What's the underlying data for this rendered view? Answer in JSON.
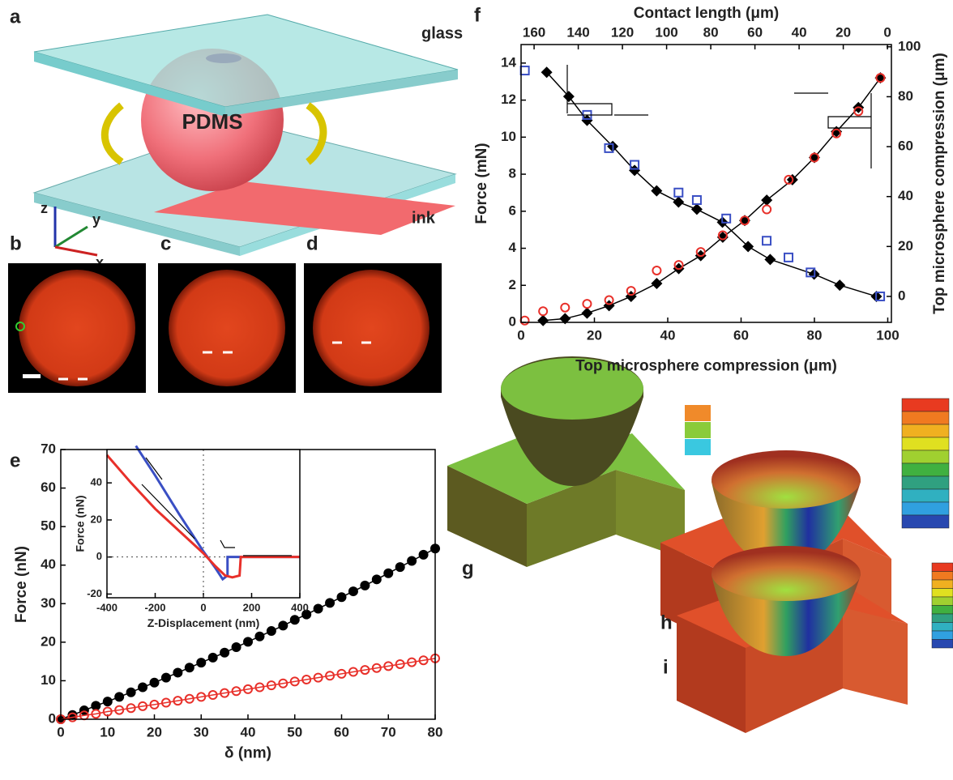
{
  "panel_labels": [
    "a",
    "b",
    "c",
    "d",
    "e",
    "f",
    "g",
    "h",
    "i"
  ],
  "illustration": {
    "glass": "glass",
    "pdms": "PDMS",
    "ink": "ink",
    "axes": [
      "z",
      "y",
      "x"
    ]
  },
  "chart_data": [
    {
      "type": "line",
      "xlabel": "δ (nm)",
      "ylabel": "Force (nN)",
      "xlim": [
        0,
        80
      ],
      "ylim": [
        0,
        70
      ],
      "xticks": [
        0,
        10,
        20,
        30,
        40,
        50,
        60,
        70,
        80
      ],
      "yticks": [
        0,
        10,
        20,
        30,
        40,
        50,
        60,
        70
      ],
      "x": [
        0,
        2.5,
        5,
        7.5,
        10,
        12.5,
        15,
        17.5,
        20,
        22.5,
        25,
        27.5,
        30,
        32.5,
        35,
        37.5,
        40,
        42.5,
        45,
        47.5,
        50,
        52.5,
        55,
        57.5,
        60,
        62.5,
        65,
        67.5,
        70,
        72.5,
        75,
        77.5,
        80
      ],
      "series": [
        {
          "color": "#000000",
          "marker": "circle-filled",
          "line": true,
          "values": [
            0,
            1.1,
            2.3,
            3.5,
            4.6,
            5.8,
            7.0,
            8.3,
            9.5,
            10.8,
            12.1,
            13.4,
            14.7,
            16.0,
            17.3,
            18.7,
            20.1,
            21.5,
            22.9,
            24.3,
            25.8,
            27.2,
            28.7,
            30.2,
            31.7,
            33.2,
            34.7,
            36.3,
            37.9,
            39.5,
            41.1,
            42.7,
            44.3
          ]
        },
        {
          "color": "#e8302a",
          "marker": "circle-open",
          "line": true,
          "values": [
            0,
            0.5,
            1.0,
            1.4,
            2.0,
            2.4,
            2.9,
            3.4,
            3.8,
            4.3,
            4.8,
            5.3,
            5.8,
            6.3,
            6.8,
            7.3,
            7.8,
            8.3,
            8.8,
            9.3,
            9.8,
            10.3,
            10.8,
            11.3,
            11.8,
            12.3,
            12.8,
            13.3,
            13.8,
            14.3,
            14.8,
            15.3,
            15.8
          ]
        }
      ]
    },
    {
      "type": "line",
      "xlabel": "Z-Displacement (nm)",
      "ylabel": "Force (nN)",
      "xlim": [
        -400,
        400
      ],
      "ylim": [
        -22,
        58
      ],
      "xticks": [
        -400,
        -200,
        0,
        200,
        400
      ],
      "yticks": [
        -20,
        0,
        20,
        40
      ],
      "series": [
        {
          "color": "#3a4fc4",
          "marker": null,
          "line": true,
          "x": [
            -280,
            -200,
            -100,
            0,
            50,
            80,
            100,
            100,
            200,
            300,
            400
          ],
          "values": [
            60,
            44,
            23,
            3,
            -6,
            -12,
            -10,
            0,
            0,
            0,
            0
          ]
        },
        {
          "color": "#e8302a",
          "marker": null,
          "line": true,
          "x": [
            -400,
            -300,
            -200,
            -100,
            0,
            50,
            90,
            120,
            150,
            155,
            250,
            400
          ],
          "values": [
            55,
            40,
            26,
            14,
            2,
            -5,
            -10,
            -11,
            -10,
            0,
            0,
            0
          ]
        }
      ]
    },
    {
      "type": "scatter",
      "xlabel": "Top microsphere compression (μm)",
      "ylabel": "Force (mN)",
      "x2label": "Contact length (μm)",
      "y2label": "Top microsphere compression (μm)",
      "xlim": [
        0,
        101
      ],
      "ylim": [
        0,
        15
      ],
      "x2lim": [
        165.9,
        -1.8
      ],
      "y2lim": [
        -10.4,
        100.9
      ],
      "xticks": [
        0,
        20,
        40,
        60,
        80,
        100
      ],
      "yticks": [
        0,
        2,
        4,
        6,
        8,
        10,
        12,
        14
      ],
      "x2ticks": [
        160,
        140,
        120,
        100,
        80,
        60,
        40,
        20,
        0
      ],
      "y2ticks": [
        0,
        20,
        40,
        60,
        80,
        100
      ],
      "series": [
        {
          "color": "#000000",
          "marker": "diamond",
          "line": true,
          "x": [
            6,
            12,
            18,
            24,
            30,
            37,
            43,
            49,
            55,
            61,
            67,
            74,
            80,
            86,
            92,
            98
          ],
          "values": [
            0.1,
            0.2,
            0.5,
            0.9,
            1.4,
            2.1,
            2.9,
            3.6,
            4.6,
            5.5,
            6.6,
            7.7,
            8.9,
            10.3,
            11.6,
            13.2
          ]
        },
        {
          "color": "#e8302a",
          "marker": "circle-open",
          "line": false,
          "x": [
            1,
            6,
            12,
            18,
            24,
            30,
            37,
            43,
            49,
            55,
            61,
            67,
            73,
            80,
            86,
            92,
            98
          ],
          "values": [
            0.1,
            0.6,
            0.8,
            1.0,
            1.2,
            1.7,
            2.8,
            3.1,
            3.8,
            4.7,
            5.5,
            6.1,
            7.7,
            8.9,
            10.2,
            11.4,
            13.2
          ]
        },
        {
          "color": "#000000",
          "marker": "diamond",
          "line": true,
          "axis": "y2",
          "xaxis": "x2",
          "x": [
            154.3,
            144.3,
            136.0,
            124.4,
            114.5,
            104.5,
            94.6,
            86.3,
            74.7,
            63.1,
            53.1,
            33.2,
            21.6,
            5.0
          ],
          "values": [
            89.8,
            80.1,
            70.5,
            60.1,
            50.5,
            42.3,
            37.8,
            34.9,
            29.7,
            20.0,
            14.8,
            8.9,
            4.5,
            0.0
          ]
        },
        {
          "color": "#3a4fc4",
          "marker": "square-open",
          "line": false,
          "axis": "y2",
          "xaxis": "x2",
          "x": [
            164.2,
            136.0,
            126.1,
            114.5,
            94.6,
            86.3,
            73.0,
            54.7,
            44.8,
            34.8,
            3.3
          ],
          "values": [
            90.5,
            72.7,
            59.4,
            52.7,
            41.6,
            38.6,
            31.2,
            22.3,
            15.6,
            9.6,
            0.0
          ]
        }
      ]
    }
  ]
}
